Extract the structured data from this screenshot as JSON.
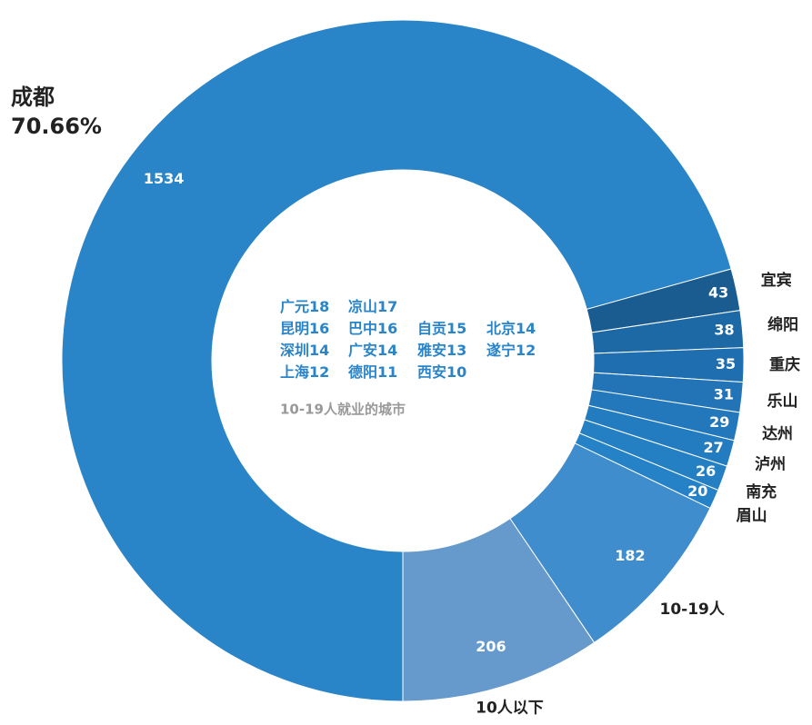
{
  "chart_data": {
    "type": "donut",
    "categories": [
      "成都",
      "宜宾",
      "绵阳",
      "重庆",
      "乐山",
      "达州",
      "泸州",
      "南充",
      "眉山",
      "10-19人",
      "10人以下"
    ],
    "values": [
      1534,
      43,
      38,
      35,
      31,
      29,
      27,
      26,
      20,
      182,
      206
    ],
    "colors": [
      "#2a84c8",
      "#1a5b90",
      "#1d69a6",
      "#1f6fb0",
      "#2274b7",
      "#2378bc",
      "#247cc0",
      "#257fc3",
      "#2682c6",
      "#3f8dcc",
      "#6699cc"
    ],
    "percent_label": "70.66%",
    "center_rows": [
      [
        {
          "name": "广元",
          "value": 18
        },
        {
          "name": "凉山",
          "value": 17
        }
      ],
      [
        {
          "name": "昆明",
          "value": 16
        },
        {
          "name": "巴中",
          "value": 16
        },
        {
          "name": "自贡",
          "value": 15
        },
        {
          "name": "北京",
          "value": 14
        }
      ],
      [
        {
          "name": "深圳",
          "value": 14
        },
        {
          "name": "广安",
          "value": 14
        },
        {
          "name": "雅安",
          "value": 13
        },
        {
          "name": "遂宁",
          "value": 12
        }
      ],
      [
        {
          "name": "上海",
          "value": 12
        },
        {
          "name": "德阳",
          "value": 11
        },
        {
          "name": "西安",
          "value": 10
        }
      ]
    ],
    "center_caption": "10-19人就业的城市"
  }
}
